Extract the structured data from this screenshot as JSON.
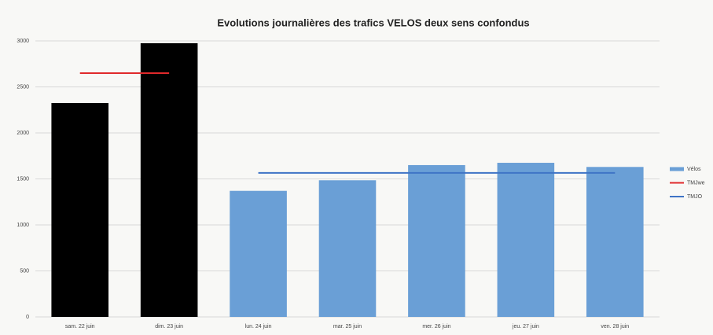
{
  "chart_data": {
    "type": "bar",
    "title": "Evolutions journalières des trafics VELOS deux sens confondus",
    "categories": [
      "sam. 22 juin",
      "dim. 23 juin",
      "lun. 24 juin",
      "mar. 25 juin",
      "mer. 26 juin",
      "jeu. 27 juin",
      "ven. 28 juin"
    ],
    "series": [
      {
        "name": "Vélos",
        "color": "#6a9fd6",
        "bar_colors": [
          "#000000",
          "#000000",
          "#6a9fd6",
          "#6a9fd6",
          "#6a9fd6",
          "#6a9fd6",
          "#6a9fd6"
        ],
        "values": [
          2325,
          2975,
          1370,
          1485,
          1650,
          1675,
          1630
        ]
      },
      {
        "name": "TMJwe",
        "type": "line",
        "color": "#e0292b",
        "values": [
          2650,
          2650,
          null,
          null,
          null,
          null,
          null
        ]
      },
      {
        "name": "TMJO",
        "type": "line",
        "color": "#3f74c6",
        "values": [
          null,
          null,
          1565,
          1565,
          1565,
          1565,
          1565
        ]
      }
    ],
    "ylim": [
      0,
      3000
    ],
    "yticks": [
      0,
      500,
      1000,
      1500,
      2000,
      2500,
      3000
    ],
    "grid": true,
    "legend": "right"
  }
}
